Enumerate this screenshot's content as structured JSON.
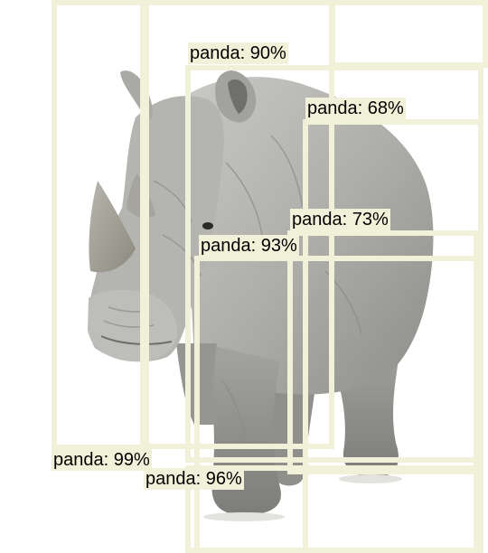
{
  "image": {
    "subject": "rhinoceros",
    "background_color": "#ffffff"
  },
  "detections": [
    {
      "label": "panda: 99%",
      "class": "panda",
      "score": 0.99
    },
    {
      "label": "panda: 90%",
      "class": "panda",
      "score": 0.9
    },
    {
      "label": "panda: 68%",
      "class": "panda",
      "score": 0.68
    },
    {
      "label": "panda: 73%",
      "class": "panda",
      "score": 0.73
    },
    {
      "label": "panda: 93%",
      "class": "panda",
      "score": 0.93
    },
    {
      "label": "panda: 96%",
      "class": "panda",
      "score": 0.96
    }
  ],
  "style": {
    "box_color": "#f1f1d9",
    "label_background": "#f1f1d9",
    "label_text_color": "#000000"
  }
}
